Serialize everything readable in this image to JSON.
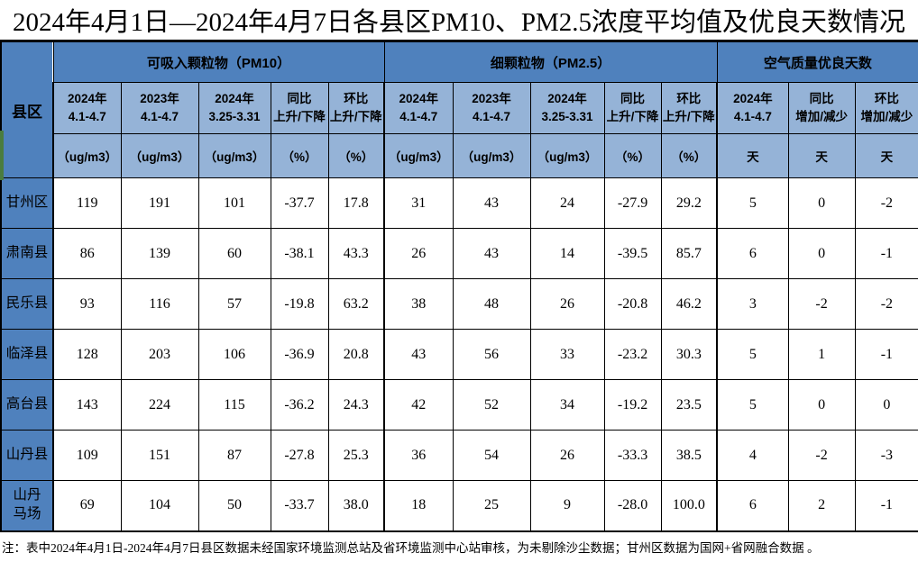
{
  "title": "2024年4月1日—2024年4月7日各县区PM10、PM2.5浓度平均值及优良天数情况",
  "note": "注：表中2024年4月1日-2024年4月7日县区数据未经国家环境监测总站及省环境监测中心站审核，为未剔除沙尘数据；甘州区数据为国网+省网融合数据 。",
  "colors": {
    "header_blue": "#4f81bd",
    "subheader_blue": "#95b3d7",
    "border_black": "#000000",
    "green_strip": "#4a7c3f",
    "cell_white": "#ffffff"
  },
  "chart_data": {
    "type": "table",
    "title": "2024年4月1日—2024年4月7日各县区PM10、PM2.5浓度平均值及优良天数情况",
    "corner": "县区",
    "groups": [
      {
        "label": "可吸入颗粒物（PM10）",
        "span": 5
      },
      {
        "label": "细颗粒物（PM2.5）",
        "span": 5
      },
      {
        "label": "空气质量优良天数",
        "span": 3
      }
    ],
    "columns": [
      {
        "head": "2024年\n4.1-4.7",
        "unit": "（ug/m3）"
      },
      {
        "head": "2023年\n4.1-4.7",
        "unit": "（ug/m3）"
      },
      {
        "head": "2024年\n3.25-3.31",
        "unit": "（ug/m3）"
      },
      {
        "head": "同比\n上升/下降",
        "unit": "（%）"
      },
      {
        "head": "环比\n上升/下降",
        "unit": "（%）"
      },
      {
        "head": "2024年\n4.1-4.7",
        "unit": "（ug/m3）"
      },
      {
        "head": "2023年\n4.1-4.7",
        "unit": "（ug/m3）"
      },
      {
        "head": "2024年\n3.25-3.31",
        "unit": "（ug/m3）"
      },
      {
        "head": "同比\n上升/下降",
        "unit": "（%）"
      },
      {
        "head": "环比\n上升/下降",
        "unit": "（%）"
      },
      {
        "head": "2024年\n4.1-4.7",
        "unit": "天"
      },
      {
        "head": "同比\n增加/减少",
        "unit": "天"
      },
      {
        "head": "环比\n增加/减少",
        "unit": "天"
      }
    ],
    "rows": [
      {
        "label": "甘州区",
        "values": [
          "119",
          "191",
          "101",
          "-37.7",
          "17.8",
          "31",
          "43",
          "24",
          "-27.9",
          "29.2",
          "5",
          "0",
          "-2"
        ]
      },
      {
        "label": "肃南县",
        "values": [
          "86",
          "139",
          "60",
          "-38.1",
          "43.3",
          "26",
          "43",
          "14",
          "-39.5",
          "85.7",
          "6",
          "0",
          "-1"
        ]
      },
      {
        "label": "民乐县",
        "values": [
          "93",
          "116",
          "57",
          "-19.8",
          "63.2",
          "38",
          "48",
          "26",
          "-20.8",
          "46.2",
          "3",
          "-2",
          "-2"
        ]
      },
      {
        "label": "临泽县",
        "values": [
          "128",
          "203",
          "106",
          "-36.9",
          "20.8",
          "43",
          "56",
          "33",
          "-23.2",
          "30.3",
          "5",
          "1",
          "-1"
        ]
      },
      {
        "label": "高台县",
        "values": [
          "143",
          "224",
          "115",
          "-36.2",
          "24.3",
          "42",
          "52",
          "34",
          "-19.2",
          "23.5",
          "5",
          "0",
          "0"
        ]
      },
      {
        "label": "山丹县",
        "values": [
          "109",
          "151",
          "87",
          "-27.8",
          "25.3",
          "36",
          "54",
          "26",
          "-33.3",
          "38.5",
          "4",
          "-2",
          "-3"
        ]
      },
      {
        "label": "山丹\n马场",
        "values": [
          "69",
          "104",
          "50",
          "-33.7",
          "38.0",
          "18",
          "25",
          "9",
          "-28.0",
          "100.0",
          "6",
          "2",
          "-1"
        ]
      }
    ]
  }
}
